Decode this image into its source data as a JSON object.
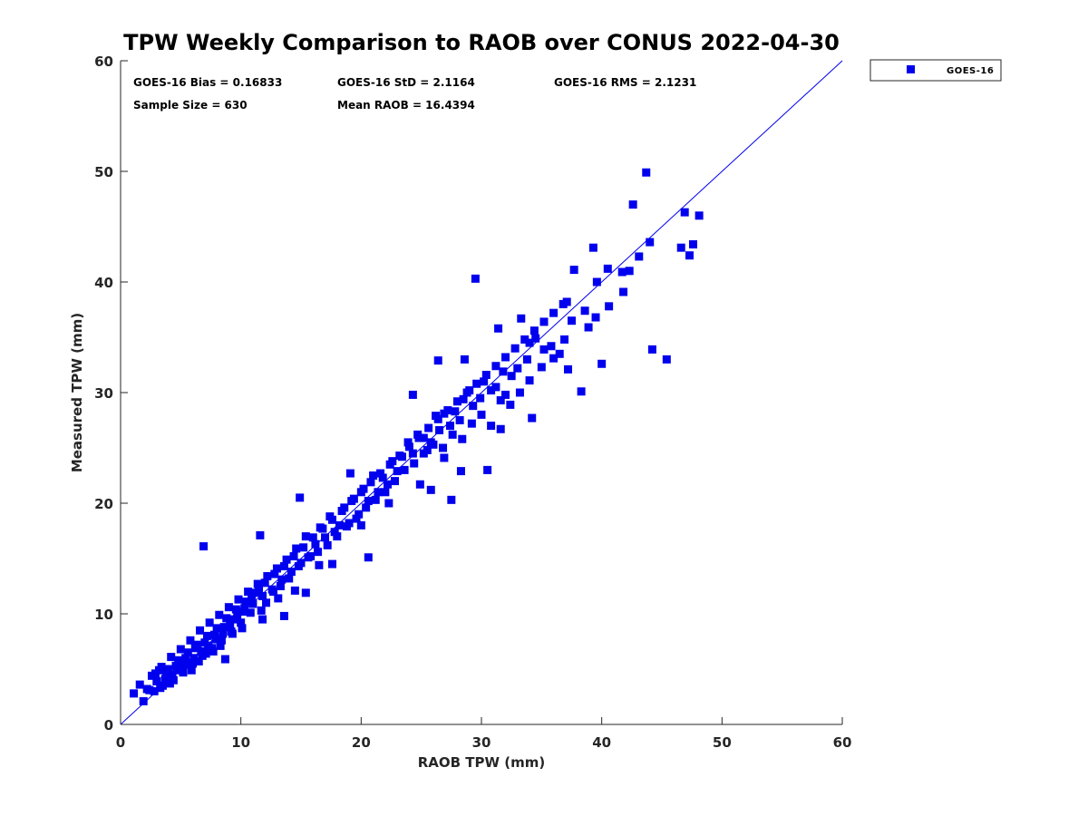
{
  "chart_data": {
    "type": "scatter",
    "title": "TPW Weekly Comparison to RAOB over CONUS 2022-04-30",
    "xlabel": "RAOB TPW (mm)",
    "ylabel": "Measured TPW (mm)",
    "xlim": [
      0,
      60
    ],
    "ylim": [
      0,
      60
    ],
    "xticks": [
      "0",
      "10",
      "20",
      "30",
      "40",
      "50",
      "60"
    ],
    "yticks": [
      "0",
      "10",
      "20",
      "30",
      "40",
      "50",
      "60"
    ],
    "grid": false,
    "legend": {
      "placement": "top-right outside",
      "entries": [
        "GOES-16"
      ]
    },
    "reference_line": {
      "name": "1:1 line",
      "x": [
        0,
        60
      ],
      "y": [
        0,
        60
      ]
    },
    "stats": {
      "bias": "GOES-16 Bias = 0.16833",
      "std": "GOES-16 StD = 2.1164",
      "rms": "GOES-16 RMS = 2.1231",
      "sample": "Sample Size = 630",
      "mean": "Mean RAOB = 16.4394"
    },
    "colors": {
      "series": "#0000ee",
      "line": "#0000ee",
      "axis": "#262626"
    },
    "series": [
      {
        "name": "GOES-16",
        "points": [
          [
            43.7,
            49.9
          ],
          [
            42.6,
            47.0
          ],
          [
            46.9,
            46.3
          ],
          [
            48.1,
            46.0
          ],
          [
            44.0,
            43.6
          ],
          [
            46.6,
            43.1
          ],
          [
            47.6,
            43.4
          ],
          [
            47.3,
            42.4
          ],
          [
            29.5,
            40.3
          ],
          [
            44.2,
            33.9
          ],
          [
            45.4,
            33.0
          ],
          [
            40.0,
            32.6
          ],
          [
            38.3,
            30.1
          ],
          [
            27.5,
            20.3
          ],
          [
            20.6,
            15.1
          ],
          [
            6.9,
            16.1
          ],
          [
            1.1,
            2.8
          ],
          [
            1.9,
            2.1
          ],
          [
            39.3,
            43.1
          ],
          [
            41.7,
            40.9
          ],
          [
            43.1,
            42.3
          ],
          [
            41.8,
            39.1
          ],
          [
            40.6,
            37.8
          ],
          [
            37.7,
            41.1
          ],
          [
            37.1,
            38.2
          ],
          [
            37.2,
            32.1
          ],
          [
            28.6,
            33.0
          ],
          [
            33.3,
            36.7
          ],
          [
            31.4,
            35.8
          ],
          [
            34.2,
            27.7
          ],
          [
            26.4,
            32.9
          ],
          [
            24.3,
            29.8
          ],
          [
            30.5,
            23.0
          ],
          [
            25.8,
            21.2
          ],
          [
            19.1,
            22.7
          ],
          [
            14.9,
            20.5
          ],
          [
            11.6,
            17.1
          ],
          [
            13.6,
            9.8
          ],
          [
            11.8,
            9.5
          ],
          [
            8.7,
            5.9
          ],
          [
            40.5,
            41.2
          ],
          [
            42.3,
            41.0
          ],
          [
            39.6,
            40.0
          ],
          [
            38.9,
            35.9
          ],
          [
            39.5,
            36.8
          ],
          [
            38.6,
            37.4
          ],
          [
            37.5,
            36.5
          ],
          [
            36.9,
            34.8
          ],
          [
            36.5,
            33.5
          ],
          [
            35.8,
            34.2
          ],
          [
            35.2,
            33.9
          ],
          [
            34.5,
            34.9
          ],
          [
            34.0,
            34.5
          ],
          [
            33.8,
            33.0
          ],
          [
            33.0,
            32.2
          ],
          [
            32.5,
            31.5
          ],
          [
            31.8,
            31.9
          ],
          [
            31.2,
            30.5
          ],
          [
            32.0,
            29.8
          ],
          [
            31.6,
            29.3
          ],
          [
            30.8,
            30.2
          ],
          [
            30.2,
            31.0
          ],
          [
            29.9,
            29.5
          ],
          [
            29.3,
            28.8
          ],
          [
            29.0,
            30.2
          ],
          [
            28.5,
            29.4
          ],
          [
            28.2,
            27.5
          ],
          [
            27.8,
            28.3
          ],
          [
            27.4,
            27.0
          ],
          [
            26.9,
            28.1
          ],
          [
            26.5,
            26.6
          ],
          [
            26.2,
            27.9
          ],
          [
            25.8,
            25.5
          ],
          [
            25.5,
            24.8
          ],
          [
            25.2,
            25.9
          ],
          [
            24.7,
            26.2
          ],
          [
            24.3,
            24.5
          ],
          [
            23.9,
            25.5
          ],
          [
            23.4,
            24.2
          ],
          [
            23.0,
            22.9
          ],
          [
            22.6,
            23.8
          ],
          [
            22.2,
            21.7
          ],
          [
            21.8,
            22.3
          ],
          [
            21.4,
            21.0
          ],
          [
            21.0,
            22.5
          ],
          [
            20.6,
            20.2
          ],
          [
            20.2,
            21.3
          ],
          [
            19.8,
            19.0
          ],
          [
            19.4,
            20.4
          ],
          [
            19.0,
            18.2
          ],
          [
            18.6,
            19.6
          ],
          [
            18.2,
            18.0
          ],
          [
            17.8,
            17.4
          ],
          [
            17.4,
            18.8
          ],
          [
            17.0,
            16.9
          ],
          [
            16.6,
            17.8
          ],
          [
            16.2,
            16.3
          ],
          [
            15.8,
            15.2
          ],
          [
            15.4,
            17.0
          ],
          [
            15.0,
            14.6
          ],
          [
            14.6,
            15.9
          ],
          [
            14.2,
            13.8
          ],
          [
            13.8,
            14.9
          ],
          [
            13.4,
            13.1
          ],
          [
            13.0,
            14.1
          ],
          [
            12.6,
            12.2
          ],
          [
            12.2,
            13.4
          ],
          [
            11.8,
            11.6
          ],
          [
            11.4,
            12.7
          ],
          [
            11.0,
            10.9
          ],
          [
            10.6,
            12.0
          ],
          [
            10.2,
            10.2
          ],
          [
            9.8,
            11.3
          ],
          [
            9.4,
            9.5
          ],
          [
            9.0,
            10.6
          ],
          [
            8.6,
            8.8
          ],
          [
            8.2,
            9.9
          ],
          [
            7.8,
            8.1
          ],
          [
            7.4,
            9.2
          ],
          [
            7.0,
            7.4
          ],
          [
            6.6,
            8.5
          ],
          [
            6.2,
            6.9
          ],
          [
            5.8,
            7.6
          ],
          [
            5.4,
            6.0
          ],
          [
            5.0,
            6.8
          ],
          [
            4.6,
            5.3
          ],
          [
            4.2,
            6.1
          ],
          [
            3.8,
            4.6
          ],
          [
            3.4,
            5.2
          ],
          [
            3.0,
            3.9
          ],
          [
            2.6,
            4.4
          ],
          [
            2.2,
            3.2
          ],
          [
            1.6,
            3.6
          ],
          [
            2.8,
            3.0
          ],
          [
            3.5,
            3.5
          ],
          [
            4.4,
            4.0
          ],
          [
            5.2,
            4.7
          ],
          [
            6.0,
            5.5
          ],
          [
            6.8,
            6.2
          ],
          [
            7.6,
            6.9
          ],
          [
            8.4,
            7.6
          ],
          [
            9.2,
            8.4
          ],
          [
            10.0,
            9.2
          ],
          [
            10.8,
            10.1
          ],
          [
            4.0,
            5.0
          ],
          [
            4.8,
            5.8
          ],
          [
            5.6,
            6.5
          ],
          [
            6.4,
            7.2
          ],
          [
            7.2,
            8.0
          ],
          [
            8.0,
            8.7
          ],
          [
            8.8,
            9.6
          ],
          [
            9.6,
            10.4
          ],
          [
            10.4,
            11.1
          ],
          [
            11.2,
            11.9
          ],
          [
            12.0,
            12.8
          ],
          [
            12.8,
            13.6
          ],
          [
            13.6,
            14.3
          ],
          [
            14.4,
            15.2
          ],
          [
            15.2,
            16.0
          ],
          [
            16.0,
            16.9
          ],
          [
            16.8,
            17.7
          ],
          [
            17.6,
            18.5
          ],
          [
            18.4,
            19.3
          ],
          [
            19.2,
            20.2
          ],
          [
            20.0,
            21.0
          ],
          [
            20.8,
            21.9
          ],
          [
            21.6,
            22.7
          ],
          [
            22.4,
            23.5
          ],
          [
            23.2,
            24.3
          ],
          [
            24.0,
            25.1
          ],
          [
            24.8,
            25.9
          ],
          [
            25.6,
            26.8
          ],
          [
            26.4,
            27.6
          ],
          [
            27.2,
            28.4
          ],
          [
            28.0,
            29.2
          ],
          [
            28.8,
            30.0
          ],
          [
            29.6,
            30.8
          ],
          [
            30.4,
            31.6
          ],
          [
            31.2,
            32.4
          ],
          [
            32.0,
            33.2
          ],
          [
            32.8,
            34.0
          ],
          [
            33.6,
            34.8
          ],
          [
            34.4,
            35.6
          ],
          [
            35.2,
            36.4
          ],
          [
            36.0,
            37.2
          ],
          [
            36.8,
            38.0
          ],
          [
            3.2,
            4.9
          ],
          [
            3.7,
            4.1
          ],
          [
            4.3,
            4.5
          ],
          [
            4.9,
            5.1
          ],
          [
            5.5,
            5.6
          ],
          [
            6.1,
            6.0
          ],
          [
            6.7,
            6.6
          ],
          [
            7.3,
            7.1
          ],
          [
            7.9,
            7.7
          ],
          [
            8.5,
            8.2
          ],
          [
            9.1,
            9.0
          ],
          [
            9.7,
            9.7
          ],
          [
            10.3,
            10.5
          ],
          [
            10.9,
            11.6
          ],
          [
            11.5,
            12.2
          ],
          [
            12.1,
            11.0
          ],
          [
            12.7,
            12.0
          ],
          [
            13.3,
            12.5
          ],
          [
            14.0,
            13.2
          ],
          [
            14.8,
            14.3
          ],
          [
            15.6,
            15.1
          ],
          [
            16.4,
            15.6
          ],
          [
            17.2,
            16.2
          ],
          [
            18.0,
            17.0
          ],
          [
            18.8,
            17.9
          ],
          [
            19.6,
            18.6
          ],
          [
            20.4,
            19.6
          ],
          [
            21.2,
            20.3
          ],
          [
            22.0,
            21.0
          ],
          [
            22.8,
            22.0
          ],
          [
            23.6,
            23.0
          ],
          [
            24.4,
            23.6
          ],
          [
            25.2,
            24.5
          ],
          [
            26.0,
            25.3
          ],
          [
            26.8,
            25.0
          ],
          [
            27.6,
            26.2
          ],
          [
            28.4,
            25.8
          ],
          [
            29.2,
            27.2
          ],
          [
            30.0,
            28.0
          ],
          [
            30.8,
            27.0
          ],
          [
            31.6,
            26.7
          ],
          [
            32.4,
            28.9
          ],
          [
            33.2,
            30.0
          ],
          [
            34.0,
            31.1
          ],
          [
            35.0,
            32.3
          ],
          [
            36.0,
            33.1
          ],
          [
            2.4,
            3.1
          ],
          [
            2.9,
            4.6
          ],
          [
            3.3,
            3.3
          ],
          [
            4.1,
            3.7
          ],
          [
            4.7,
            4.9
          ],
          [
            5.3,
            5.4
          ],
          [
            5.9,
            4.9
          ],
          [
            6.5,
            5.7
          ],
          [
            7.1,
            6.4
          ],
          [
            7.7,
            6.6
          ],
          [
            8.3,
            7.1
          ],
          [
            9.3,
            8.2
          ],
          [
            10.1,
            8.7
          ],
          [
            11.7,
            10.3
          ],
          [
            13.1,
            11.4
          ],
          [
            14.5,
            12.1
          ],
          [
            15.4,
            11.9
          ],
          [
            16.5,
            14.4
          ],
          [
            17.6,
            14.5
          ],
          [
            26.9,
            24.1
          ],
          [
            28.3,
            22.9
          ],
          [
            24.9,
            21.7
          ],
          [
            22.3,
            20.0
          ],
          [
            20.0,
            18.0
          ]
        ]
      }
    ]
  }
}
